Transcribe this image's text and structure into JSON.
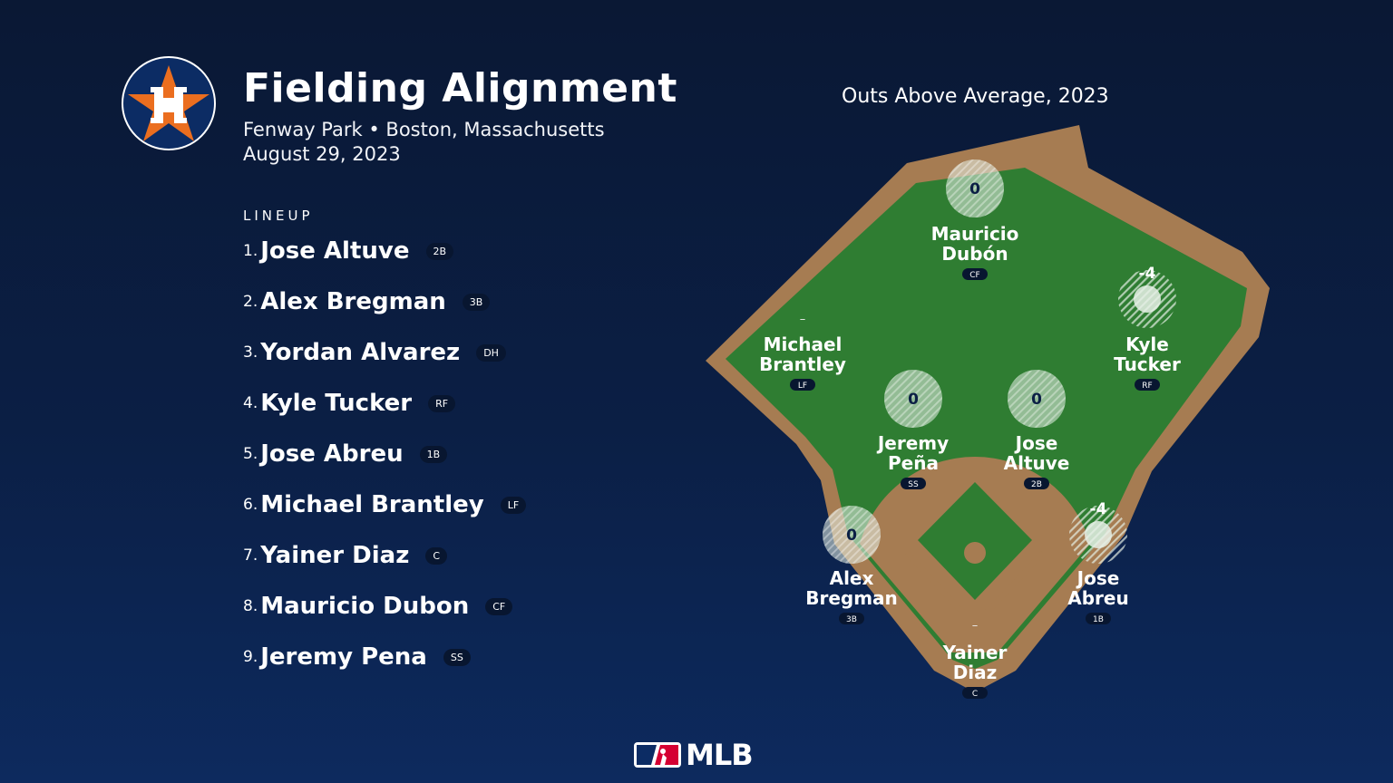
{
  "header": {
    "title": "Fielding Alignment",
    "venue": "Fenway Park • Boston, Massachusetts",
    "date": "August 29, 2023",
    "team_logo": "houston-astros-logo"
  },
  "lineup": {
    "heading": "LINEUP",
    "players": [
      {
        "num": "1.",
        "name": "Jose Altuve",
        "pos": "2B"
      },
      {
        "num": "2.",
        "name": "Alex Bregman",
        "pos": "3B"
      },
      {
        "num": "3.",
        "name": "Yordan Alvarez",
        "pos": "DH"
      },
      {
        "num": "4.",
        "name": "Kyle Tucker",
        "pos": "RF"
      },
      {
        "num": "5.",
        "name": "Jose Abreu",
        "pos": "1B"
      },
      {
        "num": "6.",
        "name": "Michael Brantley",
        "pos": "LF"
      },
      {
        "num": "7.",
        "name": "Yainer Diaz",
        "pos": "C"
      },
      {
        "num": "8.",
        "name": "Mauricio Dubon",
        "pos": "CF"
      },
      {
        "num": "9.",
        "name": "Jeremy Pena",
        "pos": "SS"
      }
    ]
  },
  "field": {
    "title": "Outs Above Average, 2023",
    "colors": {
      "grass": "#2f7d32",
      "dirt": "#a67c52",
      "marker": "#e6efe6",
      "badge": "#081630"
    },
    "fielders": [
      {
        "pos": "CF",
        "line1": "Mauricio",
        "line2": "Dubón",
        "oaa": "0"
      },
      {
        "pos": "LF",
        "line1": "Michael",
        "line2": "Brantley",
        "oaa": "–"
      },
      {
        "pos": "RF",
        "line1": "Kyle",
        "line2": "Tucker",
        "oaa": "-4"
      },
      {
        "pos": "SS",
        "line1": "Jeremy",
        "line2": "Peña",
        "oaa": "0"
      },
      {
        "pos": "2B",
        "line1": "Jose",
        "line2": "Altuve",
        "oaa": "0"
      },
      {
        "pos": "3B",
        "line1": "Alex",
        "line2": "Bregman",
        "oaa": "0"
      },
      {
        "pos": "1B",
        "line1": "Jose",
        "line2": "Abreu",
        "oaa": "-4"
      },
      {
        "pos": "C",
        "line1": "Yainer",
        "line2": "Diaz",
        "oaa": "–"
      }
    ]
  },
  "footer": {
    "brand": "MLB"
  }
}
